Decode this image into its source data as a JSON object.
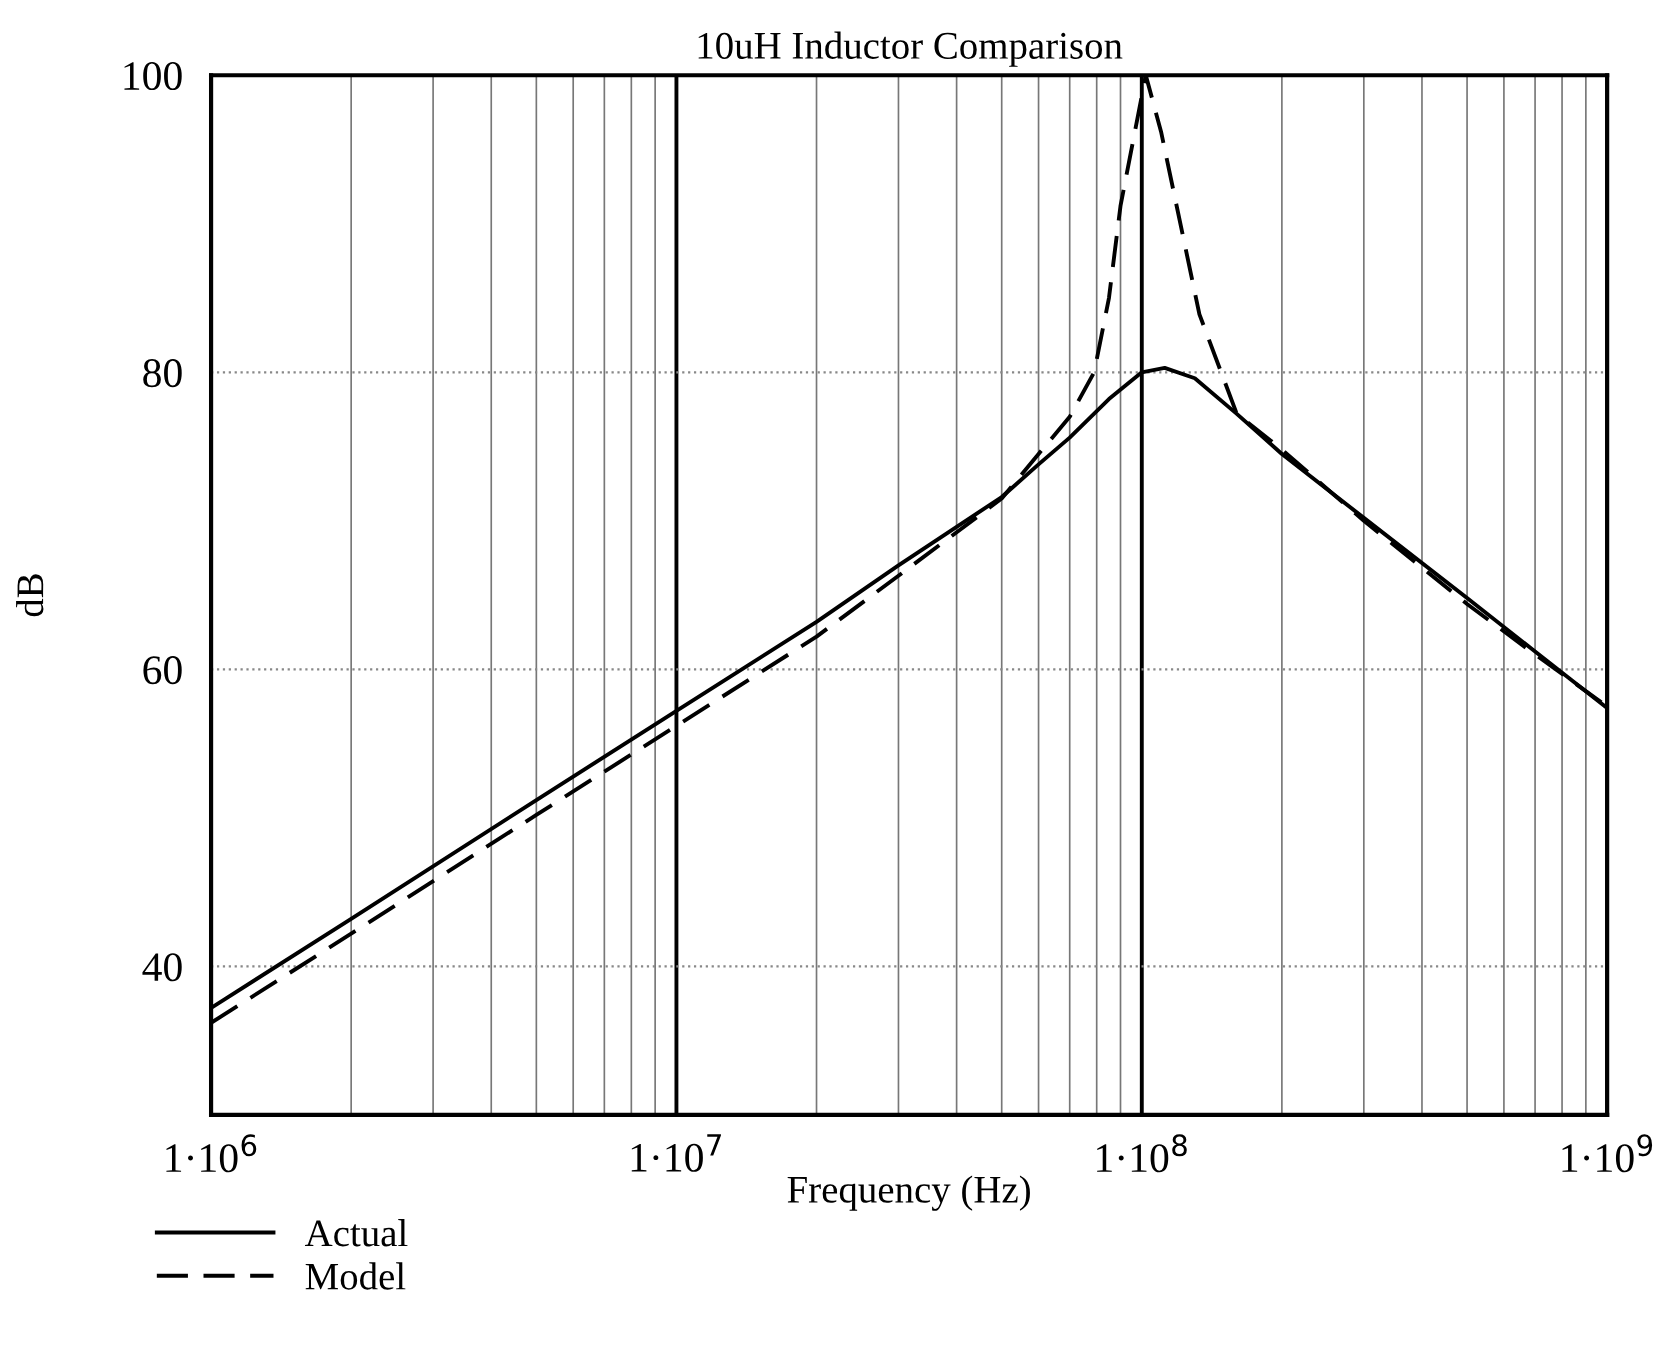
{
  "chart_data": {
    "type": "line",
    "title": "10uH Inductor Comparison",
    "xlabel": "Frequency (Hz)",
    "ylabel": "dB",
    "log": "x",
    "xlim": [
      1000000,
      1000000000
    ],
    "ylim": [
      30,
      100
    ],
    "xticks": [
      {
        "value": 1000000,
        "label": "1·10$^{6}$"
      },
      {
        "value": 10000000,
        "label": "1·10$^{7}$"
      },
      {
        "value": 100000000,
        "label": "1·10$^{8}$"
      },
      {
        "value": 1000000000,
        "label": "1·10$^{9}$"
      }
    ],
    "yticks": [
      40,
      60,
      80,
      100
    ],
    "grid": true,
    "legend": "bottom left",
    "series": [
      {
        "name": "Actual",
        "color": "#000000",
        "line_style": "solid",
        "x": [
          1000000,
          2000000,
          5000000,
          10000000,
          20000000,
          30000000,
          50000000,
          60000000,
          70000000,
          85000000,
          100000000,
          112000000,
          130000000,
          160000000,
          200000000,
          300000000,
          500000000,
          700000000,
          1000000000
        ],
        "values": [
          37.2,
          43.2,
          51.2,
          57.2,
          63.2,
          67.0,
          71.6,
          73.8,
          75.6,
          78.2,
          80.0,
          80.3,
          79.6,
          77.2,
          74.5,
          70.2,
          64.8,
          61.2,
          57.4
        ]
      },
      {
        "name": "Model",
        "color": "#000000",
        "line_style": "dashed",
        "x": [
          1000000,
          2000000,
          5000000,
          10000000,
          20000000,
          30000000,
          50000000,
          60000000,
          70000000,
          79000000,
          85000000,
          90000000,
          102000000,
          110000000,
          133000000,
          160000000,
          200000000,
          300000000,
          500000000,
          700000000,
          1000000000
        ],
        "values": [
          36.2,
          42.2,
          50.2,
          56.2,
          62.2,
          66.3,
          71.5,
          74.5,
          77.0,
          80.0,
          85.0,
          91.2,
          100,
          96.2,
          83.9,
          77.2,
          74.8,
          70.0,
          64.4,
          61.0,
          57.5
        ]
      }
    ]
  }
}
